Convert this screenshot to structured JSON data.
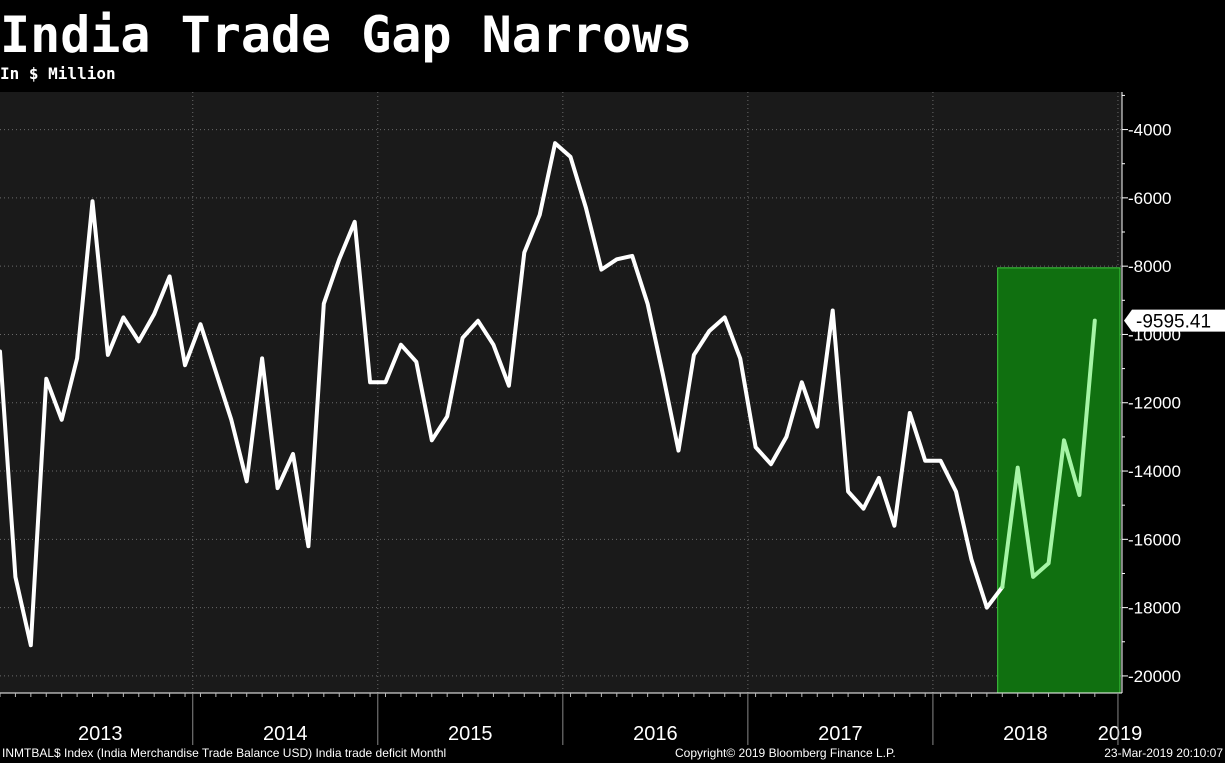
{
  "title": "India Trade Gap Narrows",
  "subtitle": "In $ Million",
  "footer": {
    "source": "INMTBAL$ Index (India Merchandise Trade Balance USD) India trade deficit  Monthl",
    "copyright": "Copyright© 2019 Bloomberg Finance L.P.",
    "timestamp": "23-Mar-2019 20:10:07"
  },
  "colors": {
    "background": "#000000",
    "plot_background": "#1a1a1a",
    "line": "#ffffff",
    "highlight_line": "#a6f5a6",
    "highlight_fill": "#107010",
    "highlight_border": "#3fd03f"
  },
  "chart_data": {
    "type": "line",
    "title": "India Trade Gap Narrows",
    "subtitle": "In $ Million",
    "xlabel": "",
    "ylabel": "",
    "start": "2012-12",
    "frequency": "monthly",
    "x_tick_labels": [
      "2013",
      "2014",
      "2015",
      "2016",
      "2017",
      "2018",
      "2019"
    ],
    "y_ticks": [
      -4000,
      -6000,
      -8000,
      -10000,
      -12000,
      -14000,
      -16000,
      -18000,
      -20000
    ],
    "ylim": [
      -20500,
      -2900
    ],
    "y_axis_side": "right",
    "grid": true,
    "last_value_label": "-9595.41",
    "highlight_range": {
      "from": "2018-05",
      "to": "2019-02",
      "ymin": -20500,
      "ymax": -8050
    },
    "highlight_from_index": 65,
    "series": [
      {
        "values": [
          -10500,
          -17100,
          -19100,
          -11300,
          -12500,
          -10700,
          -6100,
          -10600,
          -9500,
          -10200,
          -9400,
          -8300,
          -10900,
          -9700,
          -11100,
          -12500,
          -14300,
          -10700,
          -14500,
          -13500,
          -16200,
          -9100,
          -7800,
          -6700,
          -11400,
          -11400,
          -10300,
          -10800,
          -13100,
          -12400,
          -10100,
          -9600,
          -10300,
          -11500,
          -7600,
          -6500,
          -4400,
          -4800,
          -6300,
          -8100,
          -7800,
          -7700,
          -9100,
          -11200,
          -13400,
          -10600,
          -9900,
          -9500,
          -10700,
          -13300,
          -13800,
          -13000,
          -11400,
          -12700,
          -9300,
          -14600,
          -15100,
          -14200,
          -15600,
          -12300,
          -13700,
          -13700,
          -14600,
          -16600,
          -18000,
          -17400,
          -13900,
          -17100,
          -16700,
          -13100,
          -14700,
          -9595.41
        ]
      }
    ]
  }
}
